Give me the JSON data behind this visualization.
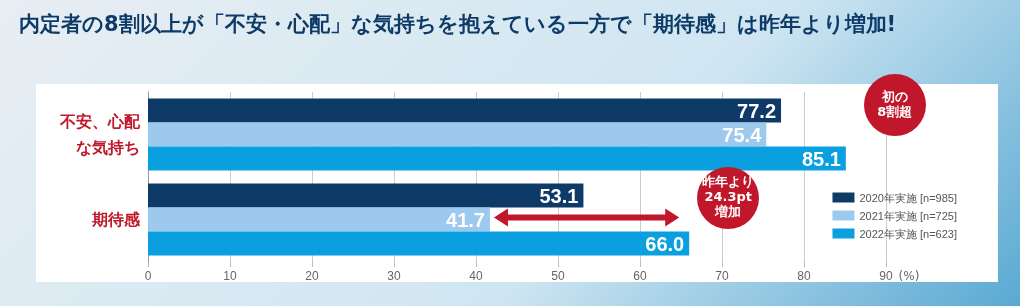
{
  "chart_data": {
    "type": "bar",
    "orientation": "horizontal",
    "title": "内定者の8割以上が「不安・心配」な気持ちを抱えている一方で「期待感」は昨年より増加!",
    "categories": [
      "不安、心配な気持ち",
      "期待感"
    ],
    "series": [
      {
        "name": "2020年実施 [n=985]",
        "color": "#0d3a66",
        "values": [
          77.2,
          53.1
        ],
        "value_labels": [
          "77.2",
          "53.1"
        ]
      },
      {
        "name": "2021年実施 [n=725]",
        "color": "#9ec9ee",
        "values": [
          75.4,
          41.7
        ],
        "value_labels": [
          "75.4",
          "41.7"
        ]
      },
      {
        "name": "2022年実施 [n=623]",
        "color": "#0aa0e0",
        "values": [
          85.1,
          66.0
        ],
        "value_labels": [
          "85.1",
          "66.0"
        ]
      }
    ],
    "xlabel": "(%)",
    "xlim": [
      0,
      90
    ],
    "xticks": [
      0,
      10,
      20,
      30,
      40,
      50,
      60,
      70,
      80,
      90
    ],
    "grid": "x",
    "legend": "bottom right",
    "annotations": [
      "初の\n8割超",
      "昨年より\n24.3pt\n増加"
    ]
  }
}
